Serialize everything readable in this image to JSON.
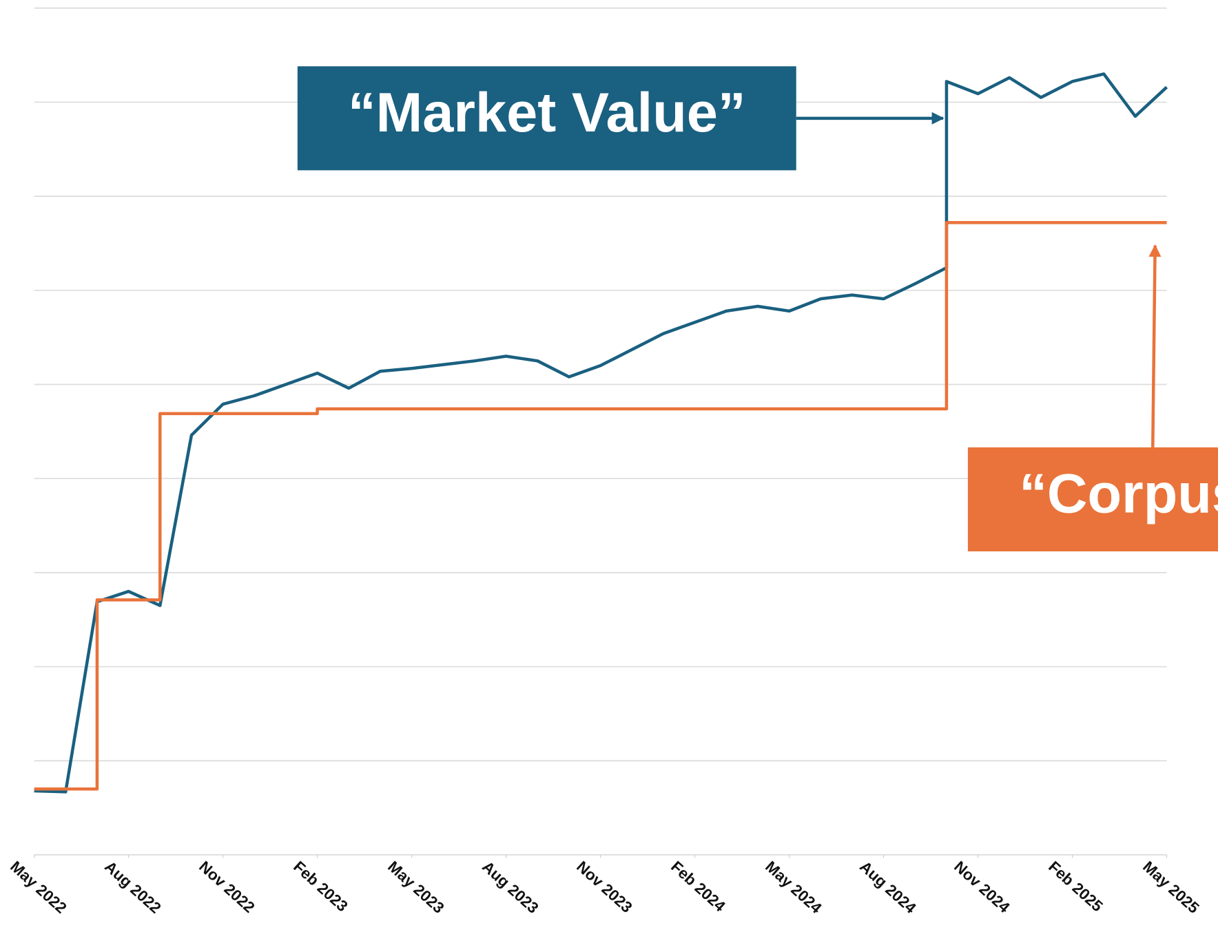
{
  "chart_data": {
    "type": "line",
    "x_format": "YYYY-MM",
    "xlim": [
      "2022-05",
      "2025-05"
    ],
    "xticks": [
      {
        "value": "2022-05",
        "label": "May 2022"
      },
      {
        "value": "2022-08",
        "label": "Aug 2022"
      },
      {
        "value": "2022-11",
        "label": "Nov 2022"
      },
      {
        "value": "2023-02",
        "label": "Feb 2023"
      },
      {
        "value": "2023-05",
        "label": "May 2023"
      },
      {
        "value": "2023-08",
        "label": "Aug 2023"
      },
      {
        "value": "2023-11",
        "label": "Nov 2023"
      },
      {
        "value": "2024-02",
        "label": "Feb 2024"
      },
      {
        "value": "2024-05",
        "label": "May 2024"
      },
      {
        "value": "2024-08",
        "label": "Aug 2024"
      },
      {
        "value": "2024-11",
        "label": "Nov 2024"
      },
      {
        "value": "2025-02",
        "label": "Feb 2025"
      },
      {
        "value": "2025-05",
        "label": "May 2025"
      }
    ],
    "ylim": [
      0,
      9
    ],
    "yticks": [
      0,
      1,
      2,
      3,
      4,
      5,
      6,
      7,
      8,
      9
    ],
    "grid": true,
    "series": [
      {
        "color": "#1a6080",
        "x": [
          "2022-05",
          "2022-06",
          "2022-07",
          "2022-08",
          "2022-09",
          "2022-10",
          "2022-11",
          "2022-12",
          "2023-01",
          "2023-02",
          "2023-03",
          "2023-04",
          "2023-05",
          "2023-06",
          "2023-07",
          "2023-08",
          "2023-09",
          "2023-10",
          "2023-11",
          "2023-12",
          "2024-01",
          "2024-02",
          "2024-03",
          "2024-04",
          "2024-05",
          "2024-06",
          "2024-07",
          "2024-08",
          "2024-09",
          "2024-10",
          "2024-10",
          "2024-11",
          "2024-12",
          "2025-01",
          "2025-02",
          "2025-03",
          "2025-04",
          "2025-05"
        ],
        "values": [
          0.68,
          0.67,
          2.69,
          2.8,
          2.65,
          4.46,
          4.79,
          4.88,
          5.0,
          5.12,
          4.96,
          5.14,
          5.17,
          5.21,
          5.25,
          5.3,
          5.25,
          5.08,
          5.2,
          5.37,
          5.54,
          5.66,
          5.78,
          5.83,
          5.78,
          5.91,
          5.95,
          5.91,
          6.07,
          6.24,
          8.22,
          8.09,
          8.26,
          8.05,
          8.22,
          8.3,
          7.85,
          8.16
        ]
      },
      {
        "color": "#e9733a",
        "x": [
          "2022-05",
          "2022-07",
          "2022-07",
          "2022-09",
          "2022-09",
          "2023-02",
          "2023-02",
          "2024-10",
          "2024-10",
          "2025-05"
        ],
        "values": [
          0.7,
          0.7,
          2.71,
          2.71,
          4.69,
          4.69,
          4.74,
          4.74,
          6.72,
          6.72
        ]
      }
    ],
    "annotations": [
      {
        "text": "“Market Value”",
        "color": "#1a6080"
      },
      {
        "text": "“Corpus”",
        "color": "#e9733a"
      }
    ]
  }
}
